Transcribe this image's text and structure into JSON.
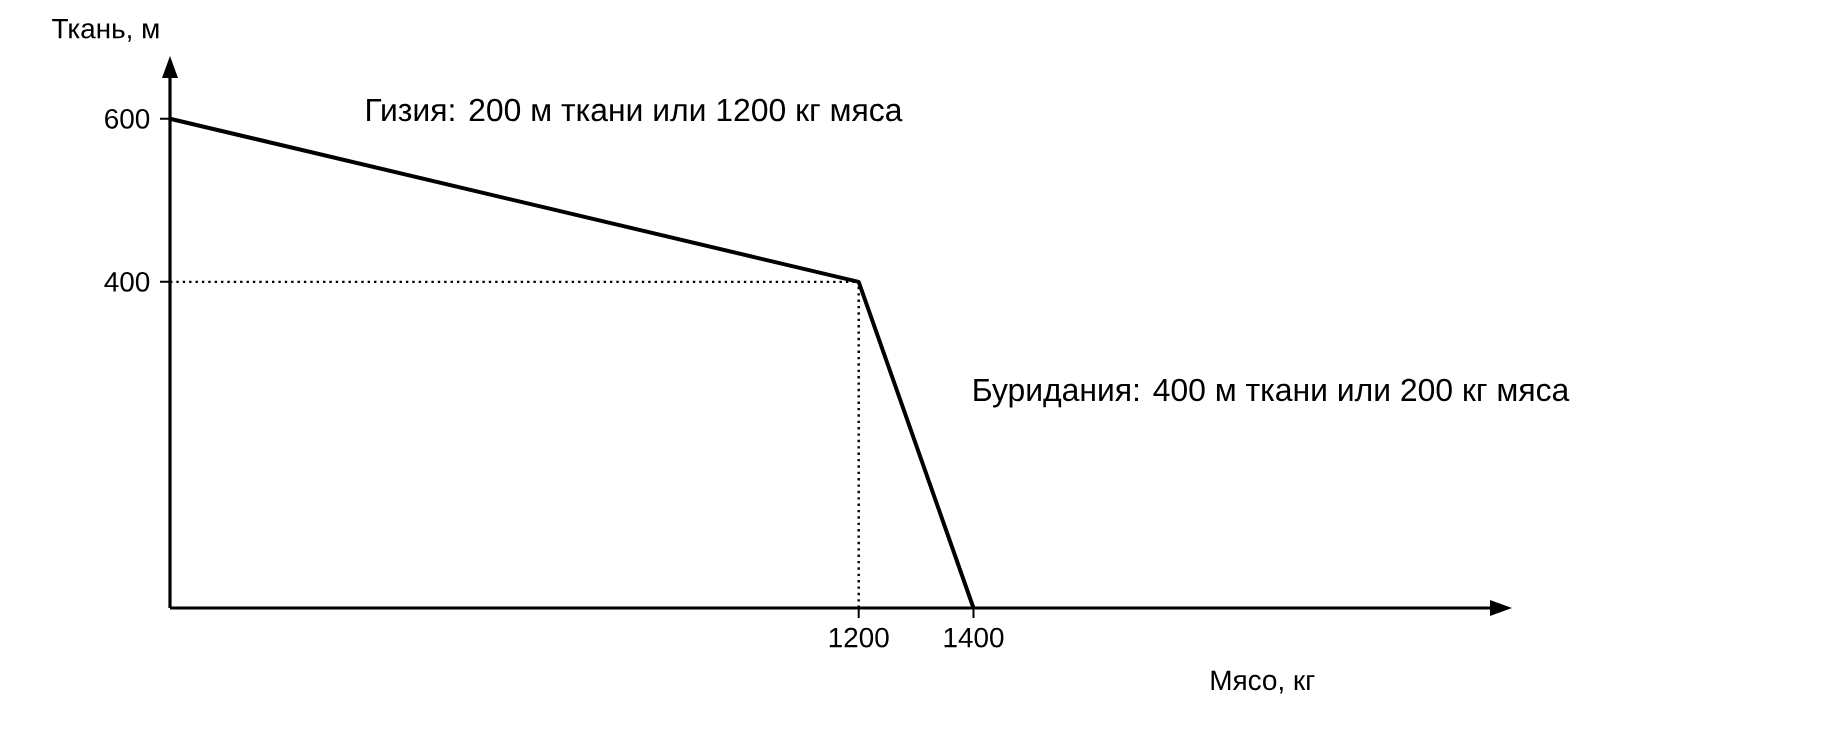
{
  "chart_data": {
    "type": "line",
    "xlabel": "Мясо, кг",
    "ylabel": "Ткань, м",
    "x": [
      0,
      1200,
      1400
    ],
    "series": [
      {
        "color": "#000000",
        "values": [
          600,
          400,
          0
        ]
      }
    ],
    "xlim": [
      0,
      2300
    ],
    "ylim": [
      0,
      650
    ],
    "xticks": [
      1200,
      1400
    ],
    "yticks": [
      400,
      600
    ],
    "grid": false,
    "marker": "none",
    "line_style": "solid",
    "ref_lines": [
      {
        "axis": "y",
        "value": 400,
        "line_style": "dotted"
      },
      {
        "axis": "x",
        "value": 1200,
        "line_style": "dotted"
      }
    ],
    "annotations": [
      "Гизия: 200 м ткани или 1200 кг мяса",
      "Буридания: 400 м ткани или 200 кг мяса"
    ]
  }
}
